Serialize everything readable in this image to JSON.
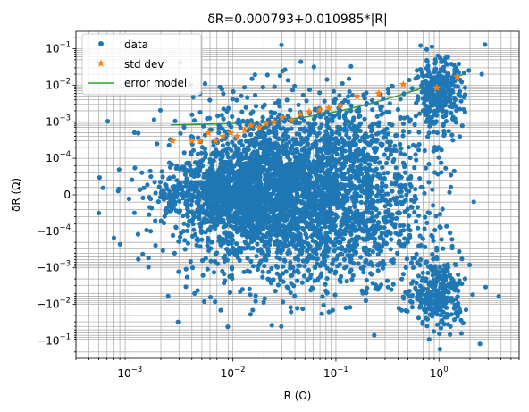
{
  "chart_data": {
    "type": "scatter",
    "title": "δR=0.000793+0.010985*|R|",
    "xlabel": "R (Ω)",
    "ylabel": "δR (Ω)",
    "xscale": "log",
    "yscale": "symlog",
    "symlog_linthresh": 0.0001,
    "xlim": [
      0.0003,
      6.0
    ],
    "ylim": [
      -0.3,
      0.3
    ],
    "x_ticks": [
      {
        "value": 0.001,
        "base": "10",
        "exp": "−3"
      },
      {
        "value": 0.01,
        "base": "10",
        "exp": "−2"
      },
      {
        "value": 0.1,
        "base": "10",
        "exp": "−1"
      },
      {
        "value": 1,
        "base": "10",
        "exp": "0"
      }
    ],
    "y_ticks": [
      {
        "value": 0.1,
        "base": "10",
        "exp": "−1"
      },
      {
        "value": 0.01,
        "base": "10",
        "exp": "−2"
      },
      {
        "value": 0.001,
        "base": "10",
        "exp": "−3"
      },
      {
        "value": 0.0001,
        "base": "10",
        "exp": "−4"
      },
      {
        "value": 0,
        "base": "0",
        "exp": ""
      },
      {
        "value": -0.0001,
        "base": "−10",
        "exp": "−4"
      },
      {
        "value": -0.001,
        "base": "−10",
        "exp": "−3"
      },
      {
        "value": -0.01,
        "base": "−10",
        "exp": "−2"
      },
      {
        "value": -0.1,
        "base": "−10",
        "exp": "−1"
      }
    ],
    "grid": true,
    "legend_position": "top-left",
    "legend": [
      {
        "label": "data",
        "marker": "dot",
        "color": "#1f77b4"
      },
      {
        "label": "std dev",
        "marker": "star",
        "color": "#ff7f0e"
      },
      {
        "label": "error model",
        "marker": "line",
        "color": "#2ca02c"
      }
    ],
    "series": [
      {
        "name": "std dev",
        "color": "#ff7f0e",
        "x": [
          0.0026,
          0.004,
          0.0048,
          0.0058,
          0.0068,
          0.008,
          0.0095,
          0.011,
          0.013,
          0.015,
          0.018,
          0.021,
          0.025,
          0.03,
          0.037,
          0.045,
          0.055,
          0.07,
          0.085,
          0.11,
          0.16,
          0.26,
          0.45,
          0.95,
          1.5
        ],
        "y": [
          0.0003,
          0.0003,
          0.0003,
          0.0005,
          0.0003,
          0.0004,
          0.0005,
          0.0004,
          0.0006,
          0.0008,
          0.0007,
          0.0009,
          0.001,
          0.0013,
          0.0011,
          0.0016,
          0.0019,
          0.0021,
          0.0024,
          0.0028,
          0.005,
          0.006,
          0.0105,
          0.0085,
          0.017
        ]
      },
      {
        "name": "error model",
        "color": "#2ca02c",
        "intercept": 0.000793,
        "slope": 0.010985,
        "x_range": [
          0.0025,
          1.7
        ]
      },
      {
        "name": "data",
        "color": "#1f77b4",
        "clusters": [
          {
            "cx": 0.013,
            "cy": 0.0,
            "sx": 0.35,
            "sy": 0.6,
            "n": 950
          },
          {
            "cx": 0.025,
            "cy": 0.3,
            "sx": 0.45,
            "sy": 1.1,
            "n": 700
          },
          {
            "cx": 0.03,
            "cy": -0.3,
            "sx": 0.5,
            "sy": 1.1,
            "n": 700
          },
          {
            "cx": 0.05,
            "cy": 0.8,
            "sx": 0.55,
            "sy": 1.0,
            "n": 650
          },
          {
            "cx": 0.05,
            "cy": -0.8,
            "sx": 0.55,
            "sy": 1.0,
            "n": 500
          },
          {
            "cx": 0.2,
            "cy": 1.2,
            "sx": 0.35,
            "sy": 0.8,
            "n": 300
          },
          {
            "cx": 0.2,
            "cy": -1.2,
            "sx": 0.35,
            "sy": 0.9,
            "n": 250
          },
          {
            "cx": 1.0,
            "cy": 2.8,
            "sx": 0.12,
            "sy": 0.45,
            "n": 320
          },
          {
            "cx": 1.0,
            "cy": -2.7,
            "sx": 0.12,
            "sy": 0.45,
            "n": 300
          },
          {
            "cx": 0.006,
            "cy": 0.0,
            "sx": 0.35,
            "sy": 0.25,
            "n": 150
          }
        ],
        "outliers": [
          {
            "x": 0.0005,
            "y": -5e-05
          },
          {
            "x": 0.0007,
            "y": -0.00015
          },
          {
            "x": 0.0016,
            "y": 5e-05
          },
          {
            "x": 2.5,
            "y": -0.12
          },
          {
            "x": 2.8,
            "y": 0.13
          },
          {
            "x": 3.8,
            "y": -0.006
          },
          {
            "x": 2.6,
            "y": 0.02
          },
          {
            "x": 0.0012,
            "y": -0.00012
          }
        ]
      }
    ]
  }
}
